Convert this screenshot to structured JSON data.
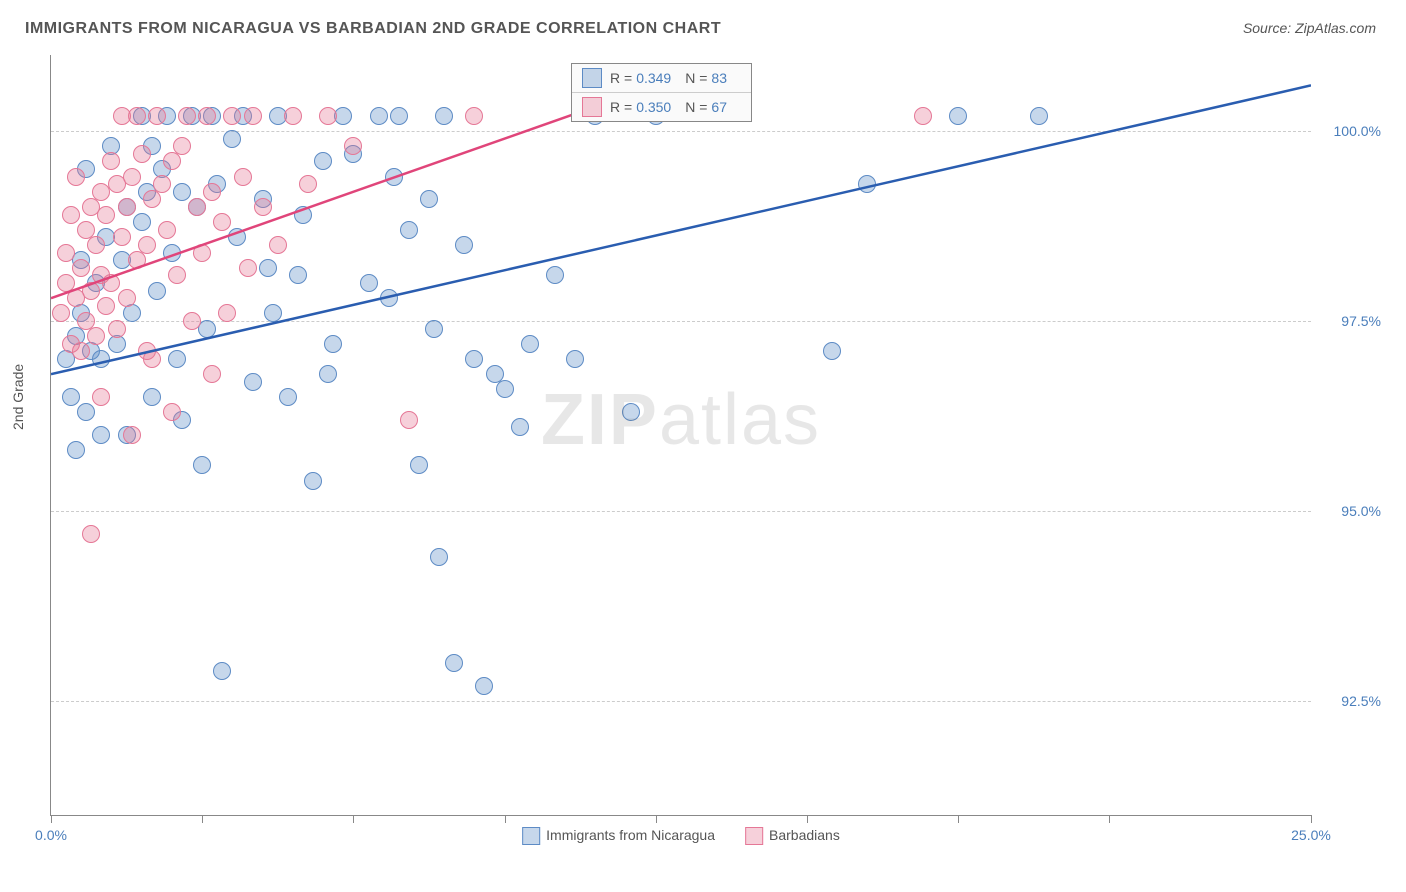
{
  "title": "IMMIGRANTS FROM NICARAGUA VS BARBADIAN 2ND GRADE CORRELATION CHART",
  "source": "Source: ZipAtlas.com",
  "y_axis_label": "2nd Grade",
  "watermark_bold": "ZIP",
  "watermark_light": "atlas",
  "chart": {
    "type": "scatter",
    "xlim": [
      0,
      25
    ],
    "ylim": [
      91,
      101
    ],
    "y_ticks": [
      92.5,
      95.0,
      97.5,
      100.0
    ],
    "y_tick_labels": [
      "92.5%",
      "95.0%",
      "97.5%",
      "100.0%"
    ],
    "x_ticks": [
      0,
      3,
      6,
      9,
      12,
      15,
      18,
      21,
      25
    ],
    "x_tick_labels": {
      "0": "0.0%",
      "25": "25.0%"
    },
    "background_color": "#ffffff",
    "grid_color": "#cccccc",
    "marker_radius": 8,
    "series": [
      {
        "name": "Immigrants from Nicaragua",
        "fill": "rgba(93,139,197,0.35)",
        "stroke": "#5d8bc5",
        "line_color": "#2a5db0",
        "line_width": 2.5,
        "trend": {
          "x1": 0,
          "y1": 96.8,
          "x2": 25,
          "y2": 100.6
        },
        "data": [
          [
            0.3,
            97.0
          ],
          [
            0.5,
            97.3
          ],
          [
            0.4,
            96.5
          ],
          [
            0.6,
            97.6
          ],
          [
            0.8,
            97.1
          ],
          [
            0.7,
            96.3
          ],
          [
            1.0,
            97.0
          ],
          [
            0.5,
            95.8
          ],
          [
            0.6,
            98.3
          ],
          [
            0.9,
            98.0
          ],
          [
            1.0,
            96.0
          ],
          [
            1.1,
            98.6
          ],
          [
            1.3,
            97.2
          ],
          [
            1.4,
            98.3
          ],
          [
            1.5,
            99.0
          ],
          [
            1.5,
            96.0
          ],
          [
            1.6,
            97.6
          ],
          [
            1.8,
            98.8
          ],
          [
            1.9,
            99.2
          ],
          [
            2.0,
            96.5
          ],
          [
            2.1,
            97.9
          ],
          [
            2.2,
            99.5
          ],
          [
            2.3,
            100.2
          ],
          [
            2.4,
            98.4
          ],
          [
            2.5,
            97.0
          ],
          [
            2.6,
            96.2
          ],
          [
            2.8,
            100.2
          ],
          [
            2.9,
            99.0
          ],
          [
            3.0,
            95.6
          ],
          [
            3.1,
            97.4
          ],
          [
            3.3,
            99.3
          ],
          [
            3.4,
            92.9
          ],
          [
            3.6,
            99.9
          ],
          [
            3.7,
            98.6
          ],
          [
            3.8,
            100.2
          ],
          [
            4.0,
            96.7
          ],
          [
            4.2,
            99.1
          ],
          [
            4.4,
            97.6
          ],
          [
            4.5,
            100.2
          ],
          [
            4.7,
            96.5
          ],
          [
            4.9,
            98.1
          ],
          [
            5.2,
            95.4
          ],
          [
            5.4,
            99.6
          ],
          [
            5.6,
            97.2
          ],
          [
            5.8,
            100.2
          ],
          [
            6.0,
            99.7
          ],
          [
            6.3,
            98.0
          ],
          [
            6.5,
            100.2
          ],
          [
            6.7,
            97.8
          ],
          [
            6.9,
            100.2
          ],
          [
            7.1,
            98.7
          ],
          [
            7.3,
            95.6
          ],
          [
            7.5,
            99.1
          ],
          [
            7.7,
            94.4
          ],
          [
            7.8,
            100.2
          ],
          [
            8.0,
            93.0
          ],
          [
            8.2,
            98.5
          ],
          [
            8.4,
            97.0
          ],
          [
            8.6,
            92.7
          ],
          [
            9.0,
            96.6
          ],
          [
            9.3,
            96.1
          ],
          [
            9.5,
            97.2
          ],
          [
            10.0,
            98.1
          ],
          [
            10.8,
            100.2
          ],
          [
            11.5,
            96.3
          ],
          [
            12.0,
            100.2
          ],
          [
            15.5,
            97.1
          ],
          [
            16.2,
            99.3
          ],
          [
            18.0,
            100.2
          ],
          [
            19.6,
            100.2
          ],
          [
            0.7,
            99.5
          ],
          [
            1.2,
            99.8
          ],
          [
            1.8,
            100.2
          ],
          [
            2.0,
            99.8
          ],
          [
            2.6,
            99.2
          ],
          [
            3.2,
            100.2
          ],
          [
            4.3,
            98.2
          ],
          [
            5.0,
            98.9
          ],
          [
            5.5,
            96.8
          ],
          [
            6.8,
            99.4
          ],
          [
            7.6,
            97.4
          ],
          [
            8.8,
            96.8
          ],
          [
            10.4,
            97.0
          ]
        ]
      },
      {
        "name": "Barbadians",
        "fill": "rgba(229,119,150,0.35)",
        "stroke": "#e57796",
        "line_color": "#e0457a",
        "line_width": 2.5,
        "trend": {
          "x1": 0,
          "y1": 97.8,
          "x2": 12,
          "y2": 100.6
        },
        "data": [
          [
            0.2,
            97.6
          ],
          [
            0.3,
            98.0
          ],
          [
            0.3,
            98.4
          ],
          [
            0.4,
            97.2
          ],
          [
            0.4,
            98.9
          ],
          [
            0.5,
            97.8
          ],
          [
            0.5,
            99.4
          ],
          [
            0.6,
            97.1
          ],
          [
            0.6,
            98.2
          ],
          [
            0.7,
            98.7
          ],
          [
            0.7,
            97.5
          ],
          [
            0.8,
            99.0
          ],
          [
            0.8,
            97.9
          ],
          [
            0.9,
            98.5
          ],
          [
            0.9,
            97.3
          ],
          [
            1.0,
            99.2
          ],
          [
            1.0,
            98.1
          ],
          [
            1.1,
            97.7
          ],
          [
            1.1,
            98.9
          ],
          [
            1.2,
            99.6
          ],
          [
            1.2,
            98.0
          ],
          [
            1.3,
            99.3
          ],
          [
            1.3,
            97.4
          ],
          [
            1.4,
            100.2
          ],
          [
            1.4,
            98.6
          ],
          [
            1.5,
            99.0
          ],
          [
            1.5,
            97.8
          ],
          [
            1.6,
            99.4
          ],
          [
            1.7,
            98.3
          ],
          [
            1.7,
            100.2
          ],
          [
            1.8,
            99.7
          ],
          [
            1.9,
            98.5
          ],
          [
            1.9,
            97.1
          ],
          [
            2.0,
            99.1
          ],
          [
            2.0,
            97.0
          ],
          [
            2.1,
            100.2
          ],
          [
            2.2,
            99.3
          ],
          [
            2.3,
            98.7
          ],
          [
            2.4,
            99.6
          ],
          [
            2.5,
            98.1
          ],
          [
            2.6,
            99.8
          ],
          [
            2.7,
            100.2
          ],
          [
            2.8,
            97.5
          ],
          [
            2.9,
            99.0
          ],
          [
            3.0,
            98.4
          ],
          [
            3.1,
            100.2
          ],
          [
            3.2,
            99.2
          ],
          [
            3.4,
            98.8
          ],
          [
            3.5,
            97.6
          ],
          [
            3.6,
            100.2
          ],
          [
            3.8,
            99.4
          ],
          [
            3.9,
            98.2
          ],
          [
            4.0,
            100.2
          ],
          [
            4.2,
            99.0
          ],
          [
            4.5,
            98.5
          ],
          [
            4.8,
            100.2
          ],
          [
            5.1,
            99.3
          ],
          [
            5.5,
            100.2
          ],
          [
            6.0,
            99.8
          ],
          [
            7.1,
            96.2
          ],
          [
            8.4,
            100.2
          ],
          [
            0.8,
            94.7
          ],
          [
            1.6,
            96.0
          ],
          [
            2.4,
            96.3
          ],
          [
            3.2,
            96.8
          ],
          [
            17.3,
            100.2
          ],
          [
            1.0,
            96.5
          ]
        ]
      }
    ]
  },
  "legend": {
    "header_R": "R =",
    "header_N": "N =",
    "rows": [
      {
        "swatch_fill": "rgba(93,139,197,0.35)",
        "swatch_stroke": "#5d8bc5",
        "R": "0.349",
        "N": "83"
      },
      {
        "swatch_fill": "rgba(229,119,150,0.35)",
        "swatch_stroke": "#e57796",
        "R": "0.350",
        "N": "67"
      }
    ]
  },
  "bottom_legend": [
    {
      "swatch_fill": "rgba(93,139,197,0.35)",
      "swatch_stroke": "#5d8bc5",
      "label": "Immigrants from Nicaragua"
    },
    {
      "swatch_fill": "rgba(229,119,150,0.35)",
      "swatch_stroke": "#e57796",
      "label": "Barbadians"
    }
  ]
}
